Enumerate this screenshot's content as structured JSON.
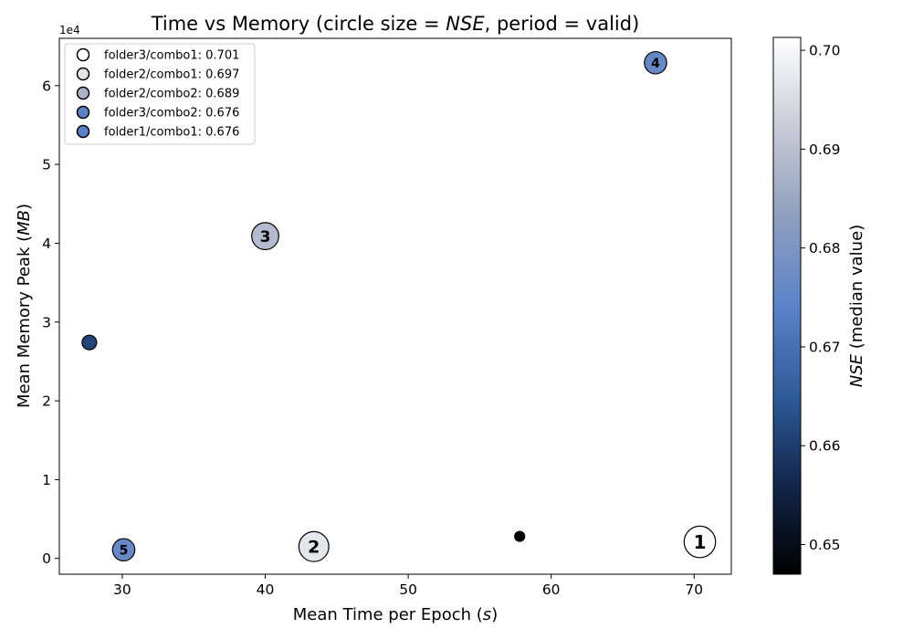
{
  "chart_data": {
    "type": "scatter",
    "title": {
      "prefix": "Time vs Memory (circle size = ",
      "metric": "NSE",
      "suffix": ", period = valid)"
    },
    "xlabel": {
      "text": "Mean Time per Epoch (",
      "unit": "s",
      "close": ")"
    },
    "ylabel": {
      "text": "Mean Memory Peak (",
      "unit": "MB",
      "close": ")"
    },
    "y_offset_label": "1e4",
    "xlim": [
      25.6,
      72.6
    ],
    "ylim": [
      -2000,
      66000
    ],
    "x_ticks": [
      30,
      40,
      50,
      60,
      70
    ],
    "y_ticks": [
      0,
      10000,
      20000,
      30000,
      40000,
      50000,
      60000
    ],
    "y_tick_labels": [
      "0",
      "1",
      "2",
      "3",
      "4",
      "5",
      "6"
    ],
    "grid": false,
    "legend_position": "top-left",
    "colorbar": {
      "label_metric": "NSE",
      "label_rest": " (median value)",
      "range": [
        0.647,
        0.7013
      ],
      "ticks": [
        0.65,
        0.66,
        0.67,
        0.68,
        0.69,
        0.7
      ],
      "tick_labels": [
        "0.65",
        "0.66",
        "0.67",
        "0.68",
        "0.69",
        "0.70"
      ],
      "colormap_stops": [
        "#000000",
        "#12264a",
        "#2f5c9b",
        "#5b82c9",
        "#8f9fbf",
        "#c9cbd6",
        "#ffffff"
      ]
    },
    "points": [
      {
        "name": "folder3/combo1",
        "x": 70.4,
        "y": 2100,
        "nse": 0.701,
        "rank": "1"
      },
      {
        "name": "folder2/combo1",
        "x": 43.4,
        "y": 1500,
        "nse": 0.697,
        "rank": "2"
      },
      {
        "name": "folder2/combo2",
        "x": 40.0,
        "y": 40900,
        "nse": 0.689,
        "rank": "3"
      },
      {
        "name": "folder3/combo2",
        "x": 67.3,
        "y": 62900,
        "nse": 0.676,
        "rank": "4"
      },
      {
        "name": "folder1/combo1",
        "x": 30.1,
        "y": 1100,
        "nse": 0.676,
        "rank": "5"
      },
      {
        "name": "",
        "x": 27.7,
        "y": 27400,
        "nse": 0.661,
        "rank": ""
      },
      {
        "name": "",
        "x": 57.8,
        "y": 2800,
        "nse": 0.647,
        "rank": ""
      }
    ],
    "legend": [
      {
        "label": "folder3/combo1: 0.701",
        "color": "#ffffff"
      },
      {
        "label": "folder2/combo1: 0.697",
        "color": "#e4e4e7"
      },
      {
        "label": "folder2/combo2: 0.689",
        "color": "#aab3c8"
      },
      {
        "label": "folder3/combo2: 0.676",
        "color": "#5b80c6"
      },
      {
        "label": "folder1/combo1: 0.676",
        "color": "#5b80c6"
      }
    ]
  }
}
